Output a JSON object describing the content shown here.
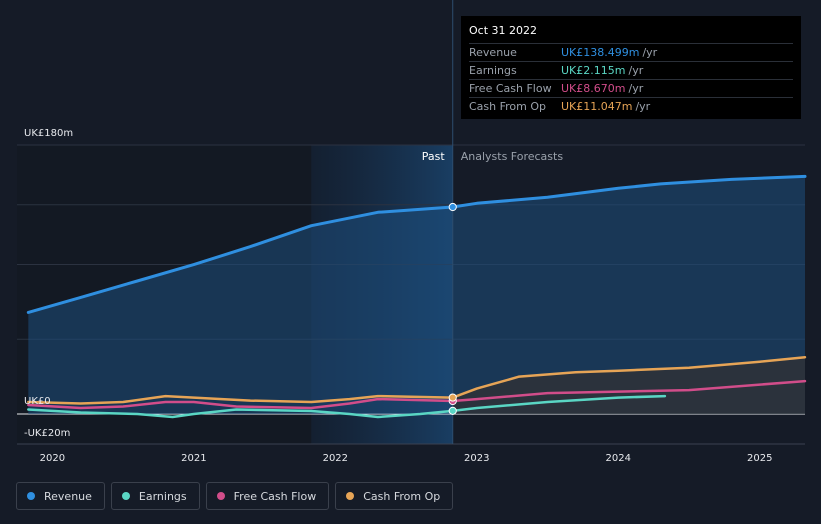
{
  "chart_data": {
    "type": "line",
    "title": "",
    "ylim": [
      -20,
      180
    ],
    "xlim": [
      2019.75,
      2025.32
    ],
    "y_labels": [
      {
        "value": 180,
        "label": "UK£180m"
      },
      {
        "value": 0,
        "label": "UK£0"
      },
      {
        "value": -20,
        "label": "-UK£20m"
      }
    ],
    "x_ticks": [
      {
        "value": 2020,
        "label": "2020"
      },
      {
        "value": 2021,
        "label": "2021"
      },
      {
        "value": 2022,
        "label": "2022"
      },
      {
        "value": 2023,
        "label": "2023"
      },
      {
        "value": 2024,
        "label": "2024"
      },
      {
        "value": 2025,
        "label": "2025"
      }
    ],
    "past_label": "Past",
    "forecast_label": "Analysts Forecasts",
    "divider_x": 2022.83,
    "shade_start_x": 2021.83,
    "series": [
      {
        "name": "Revenue",
        "color": "#2f8fe0",
        "past": [
          [
            2019.83,
            68
          ],
          [
            2020.2,
            78
          ],
          [
            2020.6,
            89
          ],
          [
            2021.0,
            100
          ],
          [
            2021.4,
            112
          ],
          [
            2021.83,
            126
          ],
          [
            2022.3,
            135
          ],
          [
            2022.83,
            138.5
          ]
        ],
        "forecast": [
          [
            2022.83,
            138.5
          ],
          [
            2023.0,
            141
          ],
          [
            2023.5,
            145
          ],
          [
            2024.0,
            151
          ],
          [
            2024.3,
            154
          ],
          [
            2024.8,
            157
          ],
          [
            2025.32,
            159
          ]
        ]
      },
      {
        "name": "Earnings",
        "color": "#5ad6c4",
        "past": [
          [
            2019.83,
            3
          ],
          [
            2020.2,
            1
          ],
          [
            2020.6,
            0
          ],
          [
            2020.85,
            -2
          ],
          [
            2021.0,
            0
          ],
          [
            2021.3,
            3
          ],
          [
            2021.83,
            2
          ],
          [
            2022.1,
            0
          ],
          [
            2022.3,
            -2
          ],
          [
            2022.6,
            0
          ],
          [
            2022.83,
            2.1
          ]
        ],
        "forecast": [
          [
            2022.83,
            2.1
          ],
          [
            2023.0,
            4
          ],
          [
            2023.5,
            8
          ],
          [
            2024.0,
            11
          ],
          [
            2024.33,
            12
          ]
        ]
      },
      {
        "name": "Free Cash Flow",
        "color": "#d14d8a",
        "past": [
          [
            2019.83,
            6
          ],
          [
            2020.2,
            4
          ],
          [
            2020.5,
            5
          ],
          [
            2020.8,
            8
          ],
          [
            2021.0,
            8
          ],
          [
            2021.3,
            5
          ],
          [
            2021.83,
            4
          ],
          [
            2022.1,
            7
          ],
          [
            2022.3,
            10
          ],
          [
            2022.83,
            8.7
          ]
        ],
        "forecast": [
          [
            2022.83,
            8.7
          ],
          [
            2023.0,
            10
          ],
          [
            2023.5,
            14
          ],
          [
            2024.0,
            15
          ],
          [
            2024.5,
            16
          ],
          [
            2025.32,
            22
          ]
        ]
      },
      {
        "name": "Cash From Op",
        "color": "#e6a456",
        "past": [
          [
            2019.83,
            8
          ],
          [
            2020.2,
            7
          ],
          [
            2020.5,
            8
          ],
          [
            2020.8,
            12
          ],
          [
            2021.0,
            11
          ],
          [
            2021.4,
            9
          ],
          [
            2021.83,
            8
          ],
          [
            2022.1,
            10
          ],
          [
            2022.3,
            12
          ],
          [
            2022.83,
            11.0
          ]
        ],
        "forecast": [
          [
            2022.83,
            11.0
          ],
          [
            2023.0,
            17
          ],
          [
            2023.3,
            25
          ],
          [
            2023.7,
            28
          ],
          [
            2024.0,
            29
          ],
          [
            2024.5,
            31
          ],
          [
            2025.0,
            35
          ],
          [
            2025.32,
            38
          ]
        ]
      }
    ]
  },
  "tooltip": {
    "date": "Oct 31 2022",
    "rows": [
      {
        "name": "Revenue",
        "value": "UK£138.499m",
        "unit": "/yr",
        "color": "#2f8fe0"
      },
      {
        "name": "Earnings",
        "value": "UK£2.115m",
        "unit": "/yr",
        "color": "#5ad6c4"
      },
      {
        "name": "Free Cash Flow",
        "value": "UK£8.670m",
        "unit": "/yr",
        "color": "#d14d8a"
      },
      {
        "name": "Cash From Op",
        "value": "UK£11.047m",
        "unit": "/yr",
        "color": "#e6a456"
      }
    ]
  },
  "legend": [
    {
      "label": "Revenue",
      "color": "#2f8fe0"
    },
    {
      "label": "Earnings",
      "color": "#5ad6c4"
    },
    {
      "label": "Free Cash Flow",
      "color": "#d14d8a"
    },
    {
      "label": "Cash From Op",
      "color": "#e6a456"
    }
  ]
}
